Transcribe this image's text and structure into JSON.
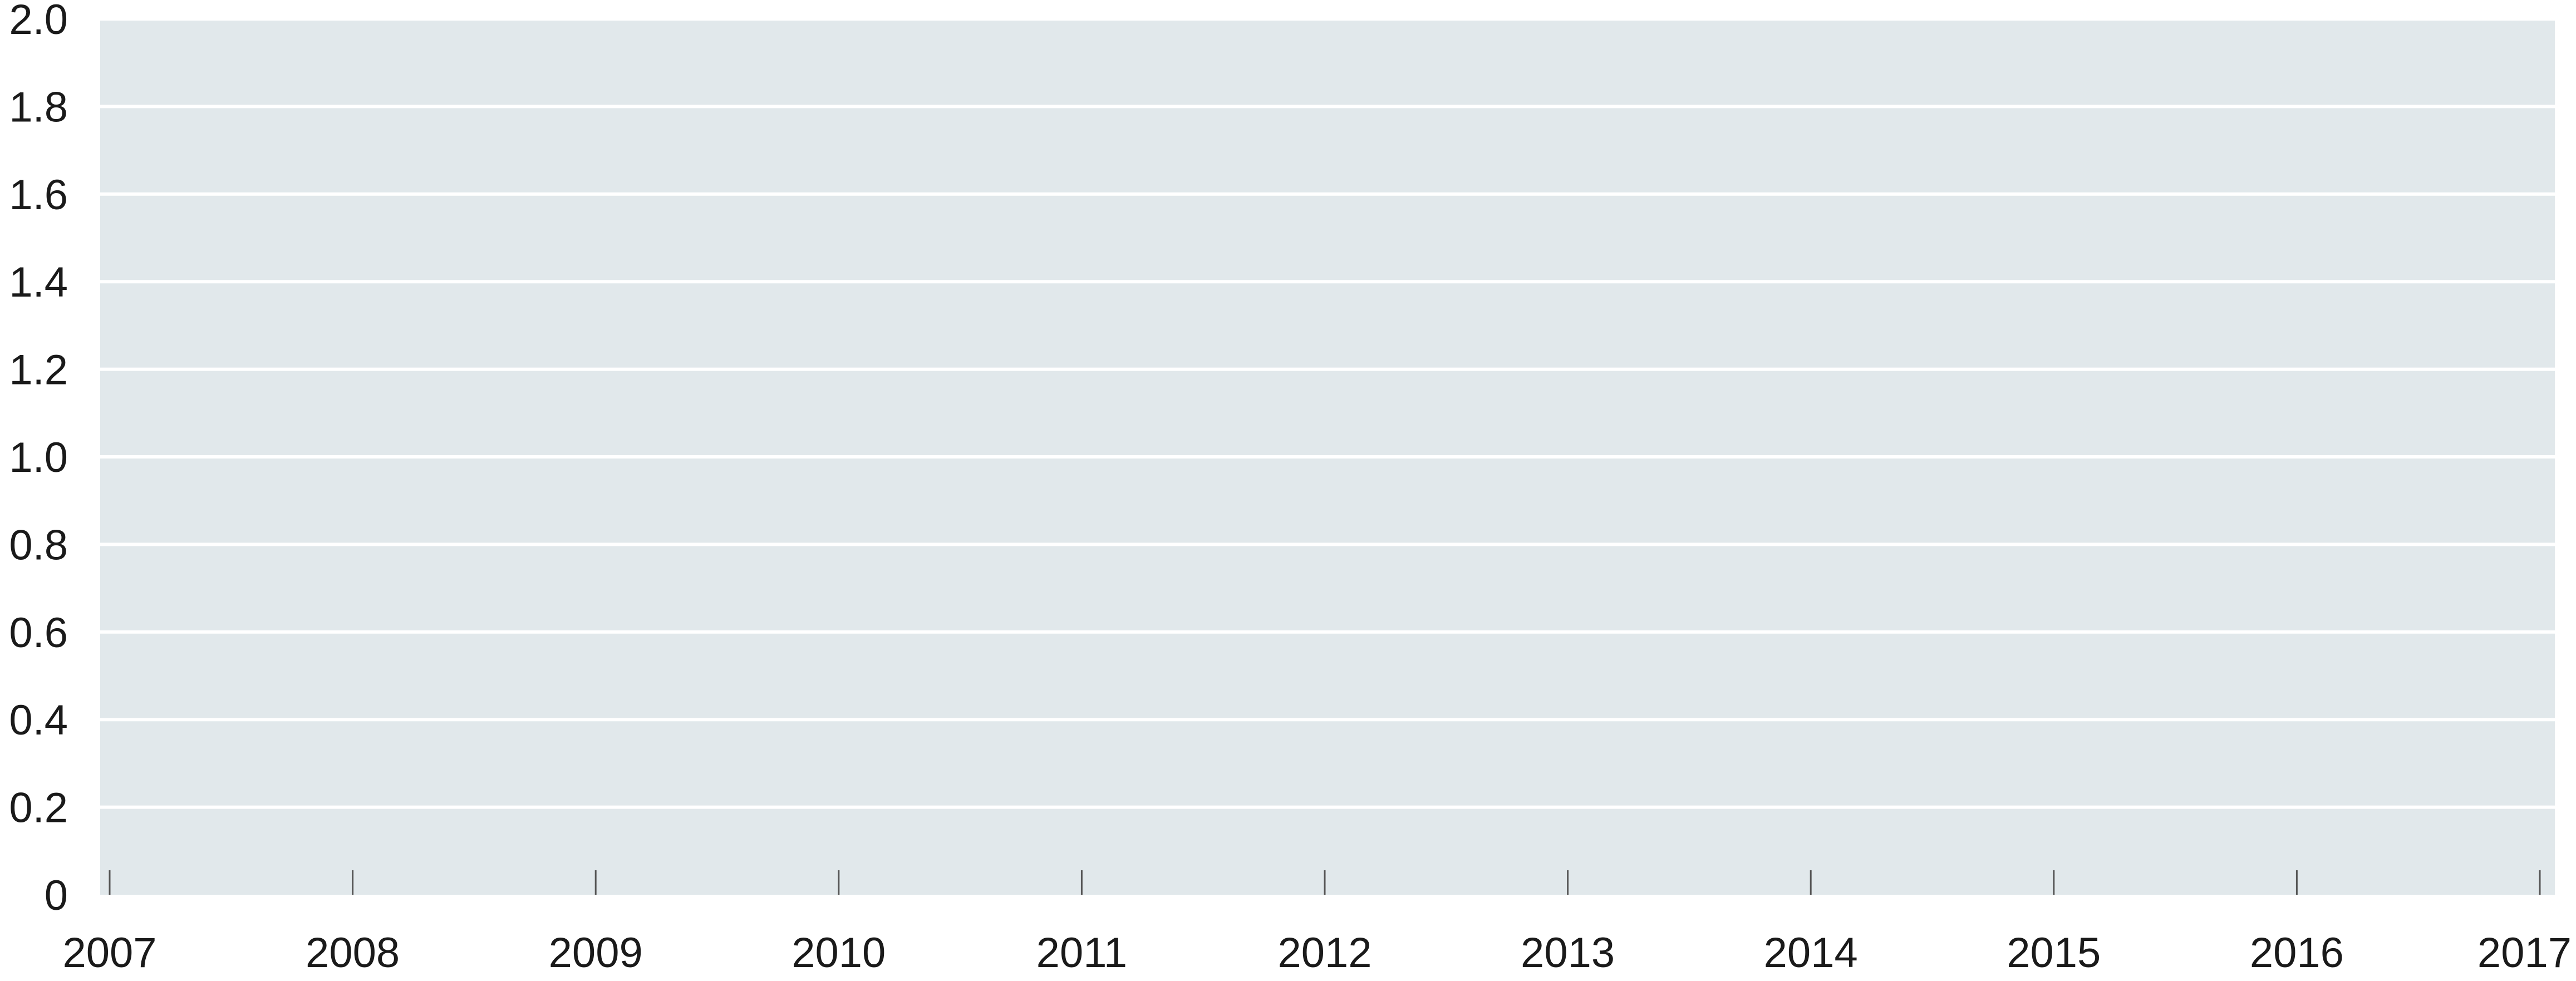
{
  "chart_data": {
    "type": "line",
    "title": "",
    "xlabel": "",
    "ylabel": "",
    "x": [
      "2007",
      "2008",
      "2009",
      "2010",
      "2011",
      "2012",
      "2013",
      "2014",
      "2015",
      "2016",
      "2017"
    ],
    "series": [],
    "ylim": [
      0,
      2.0
    ],
    "xlim": [
      2007,
      2017
    ],
    "y_ticks": [
      "0",
      "0.2",
      "0.4",
      "0.6",
      "0.8",
      "1.0",
      "1.2",
      "1.4",
      "1.6",
      "1.8",
      "2.0"
    ],
    "x_ticks": [
      "2007",
      "2008",
      "2009",
      "2010",
      "2011",
      "2012",
      "2013",
      "2014",
      "2015",
      "2016",
      "2017"
    ],
    "grid": true,
    "legend": "none",
    "colors": {
      "plot_background": "#e1e8eb",
      "gridline": "#ffffff",
      "tick_mark": "#555555",
      "text": "#1a1a1a"
    }
  }
}
